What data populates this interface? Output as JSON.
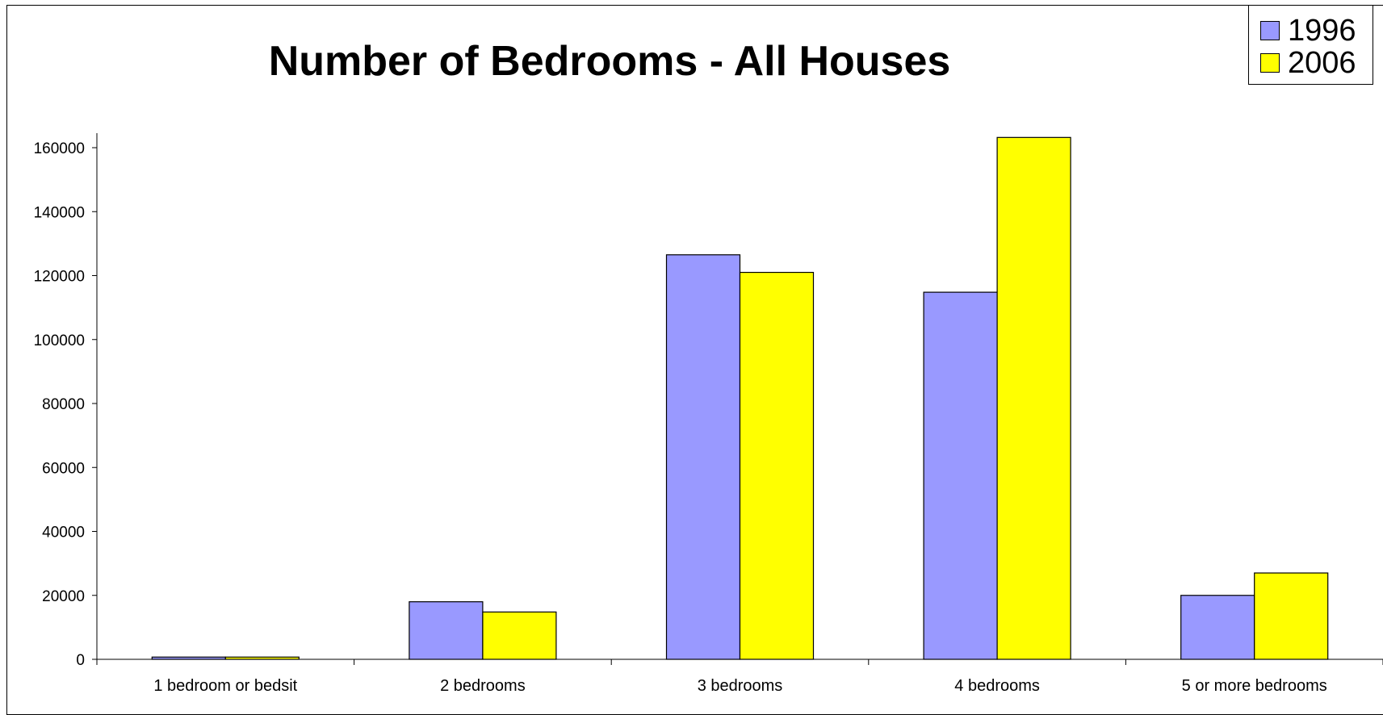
{
  "chart_data": {
    "type": "bar",
    "title": "Number of Bedrooms - All Houses",
    "xlabel": "",
    "ylabel": "",
    "categories": [
      "1 bedroom or bedsit",
      "2 bedrooms",
      "3 bedrooms",
      "4 bedrooms",
      "5 or more bedrooms"
    ],
    "series": [
      {
        "name": "1996",
        "color": "#9999ff",
        "values": [
          700,
          18000,
          126500,
          114800,
          20000
        ]
      },
      {
        "name": "2006",
        "color": "#ffff00",
        "values": [
          700,
          14800,
          121000,
          163200,
          27000
        ]
      }
    ],
    "ylim": [
      0,
      160000
    ],
    "yticks": [
      "0",
      "20000",
      "40000",
      "60000",
      "80000",
      "100000",
      "120000",
      "140000",
      "160000"
    ],
    "grid": false,
    "legend": "top-right"
  }
}
